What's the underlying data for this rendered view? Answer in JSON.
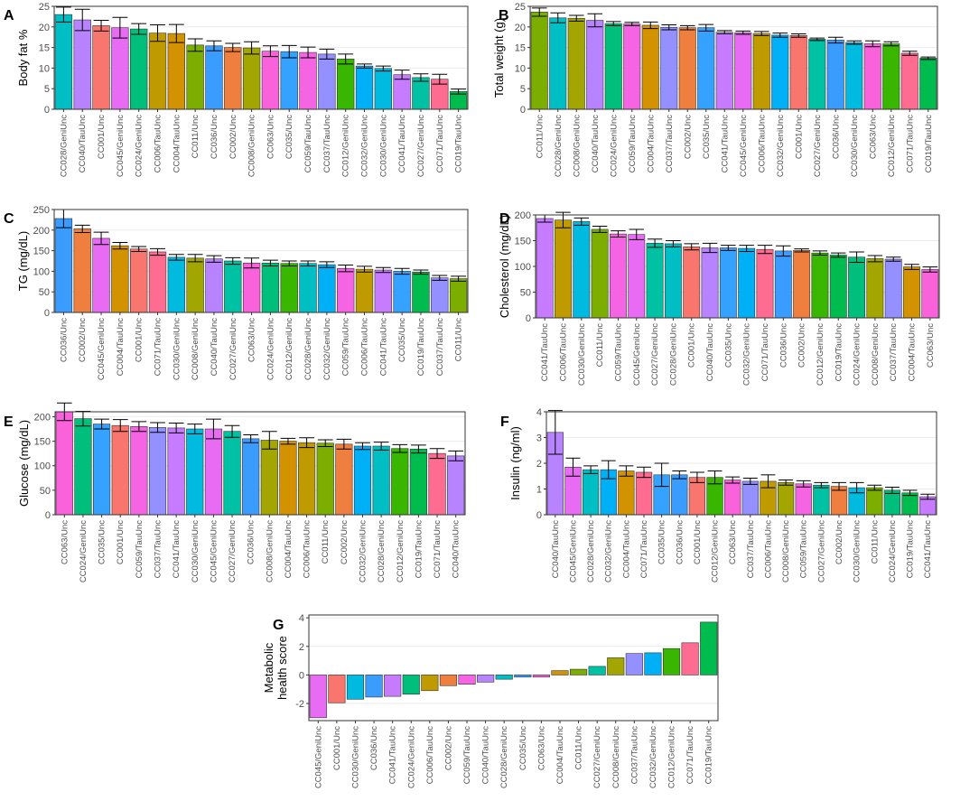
{
  "figure": {
    "background": "#ffffff",
    "plot_background": "#ffffff"
  },
  "strain_colors": {
    "CC001/Unc": "#F8766D",
    "CC002/Unc": "#EF7F3F",
    "CC004/TauUnc": "#D39200",
    "CC006/TauUnc": "#C09B00",
    "CC008/GeniUnc": "#A3A500",
    "CC011/Unc": "#7CAE00",
    "CC012/GeniUnc": "#39B600",
    "CC019/TauUnc": "#00BB4E",
    "CC024/GeniUnc": "#00BF7D",
    "CC027/GeniUnc": "#00C1A3",
    "CC028/GeniUnc": "#00BFC4",
    "CC030/GeniUnc": "#00BAE0",
    "CC032/GeniUnc": "#00B0F6",
    "CC035/Unc": "#35A2FF",
    "CC036/Unc": "#3B9CFF",
    "CC037/TauUnc": "#9590FF",
    "CC040/TauUnc": "#B883FF",
    "CC041/TauUnc": "#C77CFF",
    "CC045/GeniUnc": "#E76BF3",
    "CC059/TauUnc": "#F564E3",
    "CC063/Unc": "#FA62DB",
    "CC071/TauUnc": "#FF6C91"
  },
  "chart_data": [
    {
      "panel": "A",
      "type": "bar",
      "title": "",
      "xlabel": "",
      "ylabel": "Body fat %",
      "ylim": [
        0,
        25
      ],
      "yticks": [
        0,
        5,
        10,
        15,
        20,
        25
      ],
      "error_bars": true,
      "categories": [
        "CC028/GeniUnc",
        "CC040/TauUnc",
        "CC001/Unc",
        "CC045/GeniUnc",
        "CC024/GeniUnc",
        "CC006/TauUnc",
        "CC004/TauUnc",
        "CC011/Unc",
        "CC036/Unc",
        "CC002/Unc",
        "CC008/GeniUnc",
        "CC063/Unc",
        "CC035/Unc",
        "CC059/TauUnc",
        "CC037/TauUnc",
        "CC012/GeniUnc",
        "CC032/GeniUnc",
        "CC030/GeniUnc",
        "CC041/TauUnc",
        "CC027/GeniUnc",
        "CC071/TauUnc",
        "CC019/TauUnc"
      ],
      "values": [
        23,
        21.7,
        20.3,
        19.8,
        19.5,
        18.5,
        18.4,
        15.6,
        15.4,
        15.0,
        14.9,
        14.1,
        14.0,
        13.8,
        13.4,
        12.2,
        10.5,
        9.9,
        8.4,
        7.7,
        7.3,
        4.3
      ],
      "errors": [
        1.8,
        2.6,
        1.3,
        2.5,
        1.3,
        2.0,
        2.2,
        1.5,
        1.2,
        1.0,
        1.5,
        1.3,
        1.5,
        1.3,
        1.2,
        1.2,
        0.5,
        0.6,
        1.1,
        0.9,
        1.2,
        0.6
      ]
    },
    {
      "panel": "B",
      "type": "bar",
      "title": "",
      "xlabel": "",
      "ylabel": "Total weight (g)",
      "ylim": [
        0,
        25
      ],
      "yticks": [
        0,
        5,
        10,
        15,
        20,
        25
      ],
      "error_bars": true,
      "categories": [
        "CC011/Unc",
        "CC028/GeniUnc",
        "CC008/GeniUnc",
        "CC040/TauUnc",
        "CC024/GeniUnc",
        "CC059/TauUnc",
        "CC004/TauUnc",
        "CC037/TauUnc",
        "CC002/Unc",
        "CC035/Unc",
        "CC041/TauUnc",
        "CC045/GeniUnc",
        "CC006/TauUnc",
        "CC032/GeniUnc",
        "CC001/Unc",
        "CC027/GeniUnc",
        "CC036/Unc",
        "CC030/GeniUnc",
        "CC063/Unc",
        "CC012/GeniUnc",
        "CC071/TauUnc",
        "CC019/TauUnc"
      ],
      "values": [
        23.6,
        22.2,
        22.1,
        21.6,
        20.8,
        20.7,
        20.4,
        19.9,
        19.8,
        19.8,
        18.7,
        18.6,
        18.4,
        18.0,
        17.9,
        17.0,
        16.8,
        16.2,
        15.9,
        15.9,
        13.6,
        12.4
      ],
      "errors": [
        1.0,
        1.2,
        0.7,
        1.6,
        0.5,
        0.4,
        0.8,
        0.6,
        0.5,
        0.8,
        0.4,
        0.4,
        0.5,
        0.5,
        0.4,
        0.3,
        0.7,
        0.4,
        0.7,
        0.5,
        0.5,
        0.3
      ]
    },
    {
      "panel": "C",
      "type": "bar",
      "title": "",
      "xlabel": "",
      "ylabel": "TG (mg/dL)",
      "ylim": [
        0,
        250
      ],
      "yticks": [
        0,
        50,
        100,
        150,
        200,
        250
      ],
      "error_bars": true,
      "categories": [
        "CC036/Unc",
        "CC002/Unc",
        "CC045/GeniUnc",
        "CC004/TauUnc",
        "CC001/Unc",
        "CC071/TauUnc",
        "CC030/GeniUnc",
        "CC008/GeniUnc",
        "CC040/TauUnc",
        "CC027/GeniUnc",
        "CC063/Unc",
        "CC024/GeniUnc",
        "CC012/GeniUnc",
        "CC028/GeniUnc",
        "CC032/GeniUnc",
        "CC059/TauUnc",
        "CC006/TauUnc",
        "CC041/TauUnc",
        "CC035/Unc",
        "CC019/TauUnc",
        "CC037/TauUnc",
        "CC011/Unc"
      ],
      "values": [
        228,
        203,
        180,
        162,
        154,
        147,
        134,
        132,
        130,
        125,
        120,
        120,
        119,
        119,
        116,
        107,
        105,
        103,
        100,
        98,
        84,
        82
      ],
      "errors": [
        22,
        9,
        15,
        8,
        6,
        8,
        7,
        9,
        8,
        8,
        12,
        7,
        6,
        6,
        7,
        8,
        7,
        6,
        7,
        5,
        6,
        6
      ]
    },
    {
      "panel": "D",
      "type": "bar",
      "title": "",
      "xlabel": "",
      "ylabel": "Cholesterol (mg/dL)",
      "ylim": [
        0,
        200
      ],
      "yticks": [
        0,
        50,
        100,
        150,
        200
      ],
      "error_bars": true,
      "categories": [
        "CC041/TauUnc",
        "CC006/TauUnc",
        "CC030/GeniUnc",
        "CC011/Unc",
        "CC059/TauUnc",
        "CC045/GeniUnc",
        "CC027/GeniUnc",
        "CC028/GeniUnc",
        "CC001/Unc",
        "CC040/TauUnc",
        "CC035/Unc",
        "CC032/GeniUnc",
        "CC071/TauUnc",
        "CC036/Unc",
        "CC002/Unc",
        "CC012/GeniUnc",
        "CC019/TauUnc",
        "CC024/GeniUnc",
        "CC008/GeniUnc",
        "CC037/TauUnc",
        "CC004/TauUnc",
        "CC063/Unc"
      ],
      "values": [
        193,
        190,
        187,
        172,
        163,
        162,
        145,
        144,
        138,
        136,
        136,
        135,
        133,
        130,
        131,
        126,
        122,
        118,
        115,
        114,
        99,
        94
      ],
      "errors": [
        7,
        15,
        7,
        6,
        6,
        10,
        8,
        6,
        6,
        9,
        5,
        6,
        8,
        10,
        3,
        4,
        4,
        10,
        6,
        4,
        5,
        5
      ]
    },
    {
      "panel": "E",
      "type": "bar",
      "title": "",
      "xlabel": "",
      "ylabel": "Glucose (mg/dL)",
      "ylim": [
        0,
        210
      ],
      "yticks": [
        0,
        50,
        100,
        150,
        200
      ],
      "error_bars": true,
      "categories": [
        "CC063/Unc",
        "CC024/GeniUnc",
        "CC035/Unc",
        "CC001/Unc",
        "CC059/TauUnc",
        "CC037/TauUnc",
        "CC041/TauUnc",
        "CC030/GeniUnc",
        "CC045/GeniUnc",
        "CC027/GeniUnc",
        "CC036/Unc",
        "CC008/GeniUnc",
        "CC004/TauUnc",
        "CC006/TauUnc",
        "CC011/Unc",
        "CC002/Unc",
        "CC032/GeniUnc",
        "CC028/GeniUnc",
        "CC012/GeniUnc",
        "CC019/TauUnc",
        "CC071/TauUnc",
        "CC040/TauUnc"
      ],
      "values": [
        210,
        196,
        185,
        182,
        180,
        178,
        177,
        175,
        175,
        170,
        155,
        152,
        150,
        147,
        146,
        144,
        140,
        140,
        135,
        134,
        125,
        120
      ],
      "errors": [
        18,
        15,
        10,
        12,
        10,
        10,
        10,
        10,
        20,
        12,
        8,
        18,
        6,
        10,
        7,
        10,
        7,
        8,
        8,
        8,
        10,
        10
      ]
    },
    {
      "panel": "F",
      "type": "bar",
      "title": "",
      "xlabel": "",
      "ylabel": "Insulin (ng/ml)",
      "ylim": [
        0,
        4
      ],
      "yticks": [
        0,
        1,
        2,
        3,
        4
      ],
      "error_bars": true,
      "categories": [
        "CC040/TauUnc",
        "CC045/GeniUnc",
        "CC028/GeniUnc",
        "CC032/GeniUnc",
        "CC004/TauUnc",
        "CC071/TauUnc",
        "CC035/Unc",
        "CC036/Unc",
        "CC001/Unc",
        "CC012/GeniUnc",
        "CC063/Unc",
        "CC037/TauUnc",
        "CC006/TauUnc",
        "CC008/GeniUnc",
        "CC059/TauUnc",
        "CC027/GeniUnc",
        "CC002/Unc",
        "CC030/GeniUnc",
        "CC011/Unc",
        "CC024/GeniUnc",
        "CC019/TauUnc",
        "CC041/TauUnc"
      ],
      "values": [
        3.2,
        1.85,
        1.75,
        1.75,
        1.7,
        1.65,
        1.55,
        1.55,
        1.45,
        1.45,
        1.35,
        1.3,
        1.3,
        1.25,
        1.2,
        1.15,
        1.1,
        1.05,
        1.05,
        0.95,
        0.85,
        0.7
      ],
      "errors": [
        0.85,
        0.35,
        0.15,
        0.35,
        0.2,
        0.2,
        0.45,
        0.15,
        0.2,
        0.25,
        0.12,
        0.12,
        0.25,
        0.1,
        0.12,
        0.1,
        0.15,
        0.2,
        0.1,
        0.12,
        0.1,
        0.1
      ]
    },
    {
      "panel": "G",
      "type": "bar",
      "title": "",
      "xlabel": "",
      "ylabel": [
        "Metabolic",
        "health score"
      ],
      "ylim": [
        -3.2,
        4.2
      ],
      "yticks": [
        -2,
        0,
        2,
        4
      ],
      "error_bars": false,
      "categories": [
        "CC045/GeniUnc",
        "CC001/Unc",
        "CC030/GeniUnc",
        "CC036/Unc",
        "CC041/TauUnc",
        "CC024/GeniUnc",
        "CC006/TauUnc",
        "CC002/Unc",
        "CC059/TauUnc",
        "CC040/TauUnc",
        "CC028/GeniUnc",
        "CC035/Unc",
        "CC063/Unc",
        "CC004/TauUnc",
        "CC011/Unc",
        "CC027/GeniUnc",
        "CC008/GeniUnc",
        "CC037/TauUnc",
        "CC032/GeniUnc",
        "CC012/GeniUnc",
        "CC071/TauUnc",
        "CC019/TauUnc"
      ],
      "values": [
        -3.0,
        -1.95,
        -1.7,
        -1.55,
        -1.5,
        -1.35,
        -1.1,
        -0.75,
        -0.65,
        -0.5,
        -0.3,
        -0.15,
        -0.15,
        0.3,
        0.4,
        0.6,
        1.2,
        1.5,
        1.55,
        1.85,
        2.25,
        3.7
      ],
      "errors": []
    }
  ]
}
